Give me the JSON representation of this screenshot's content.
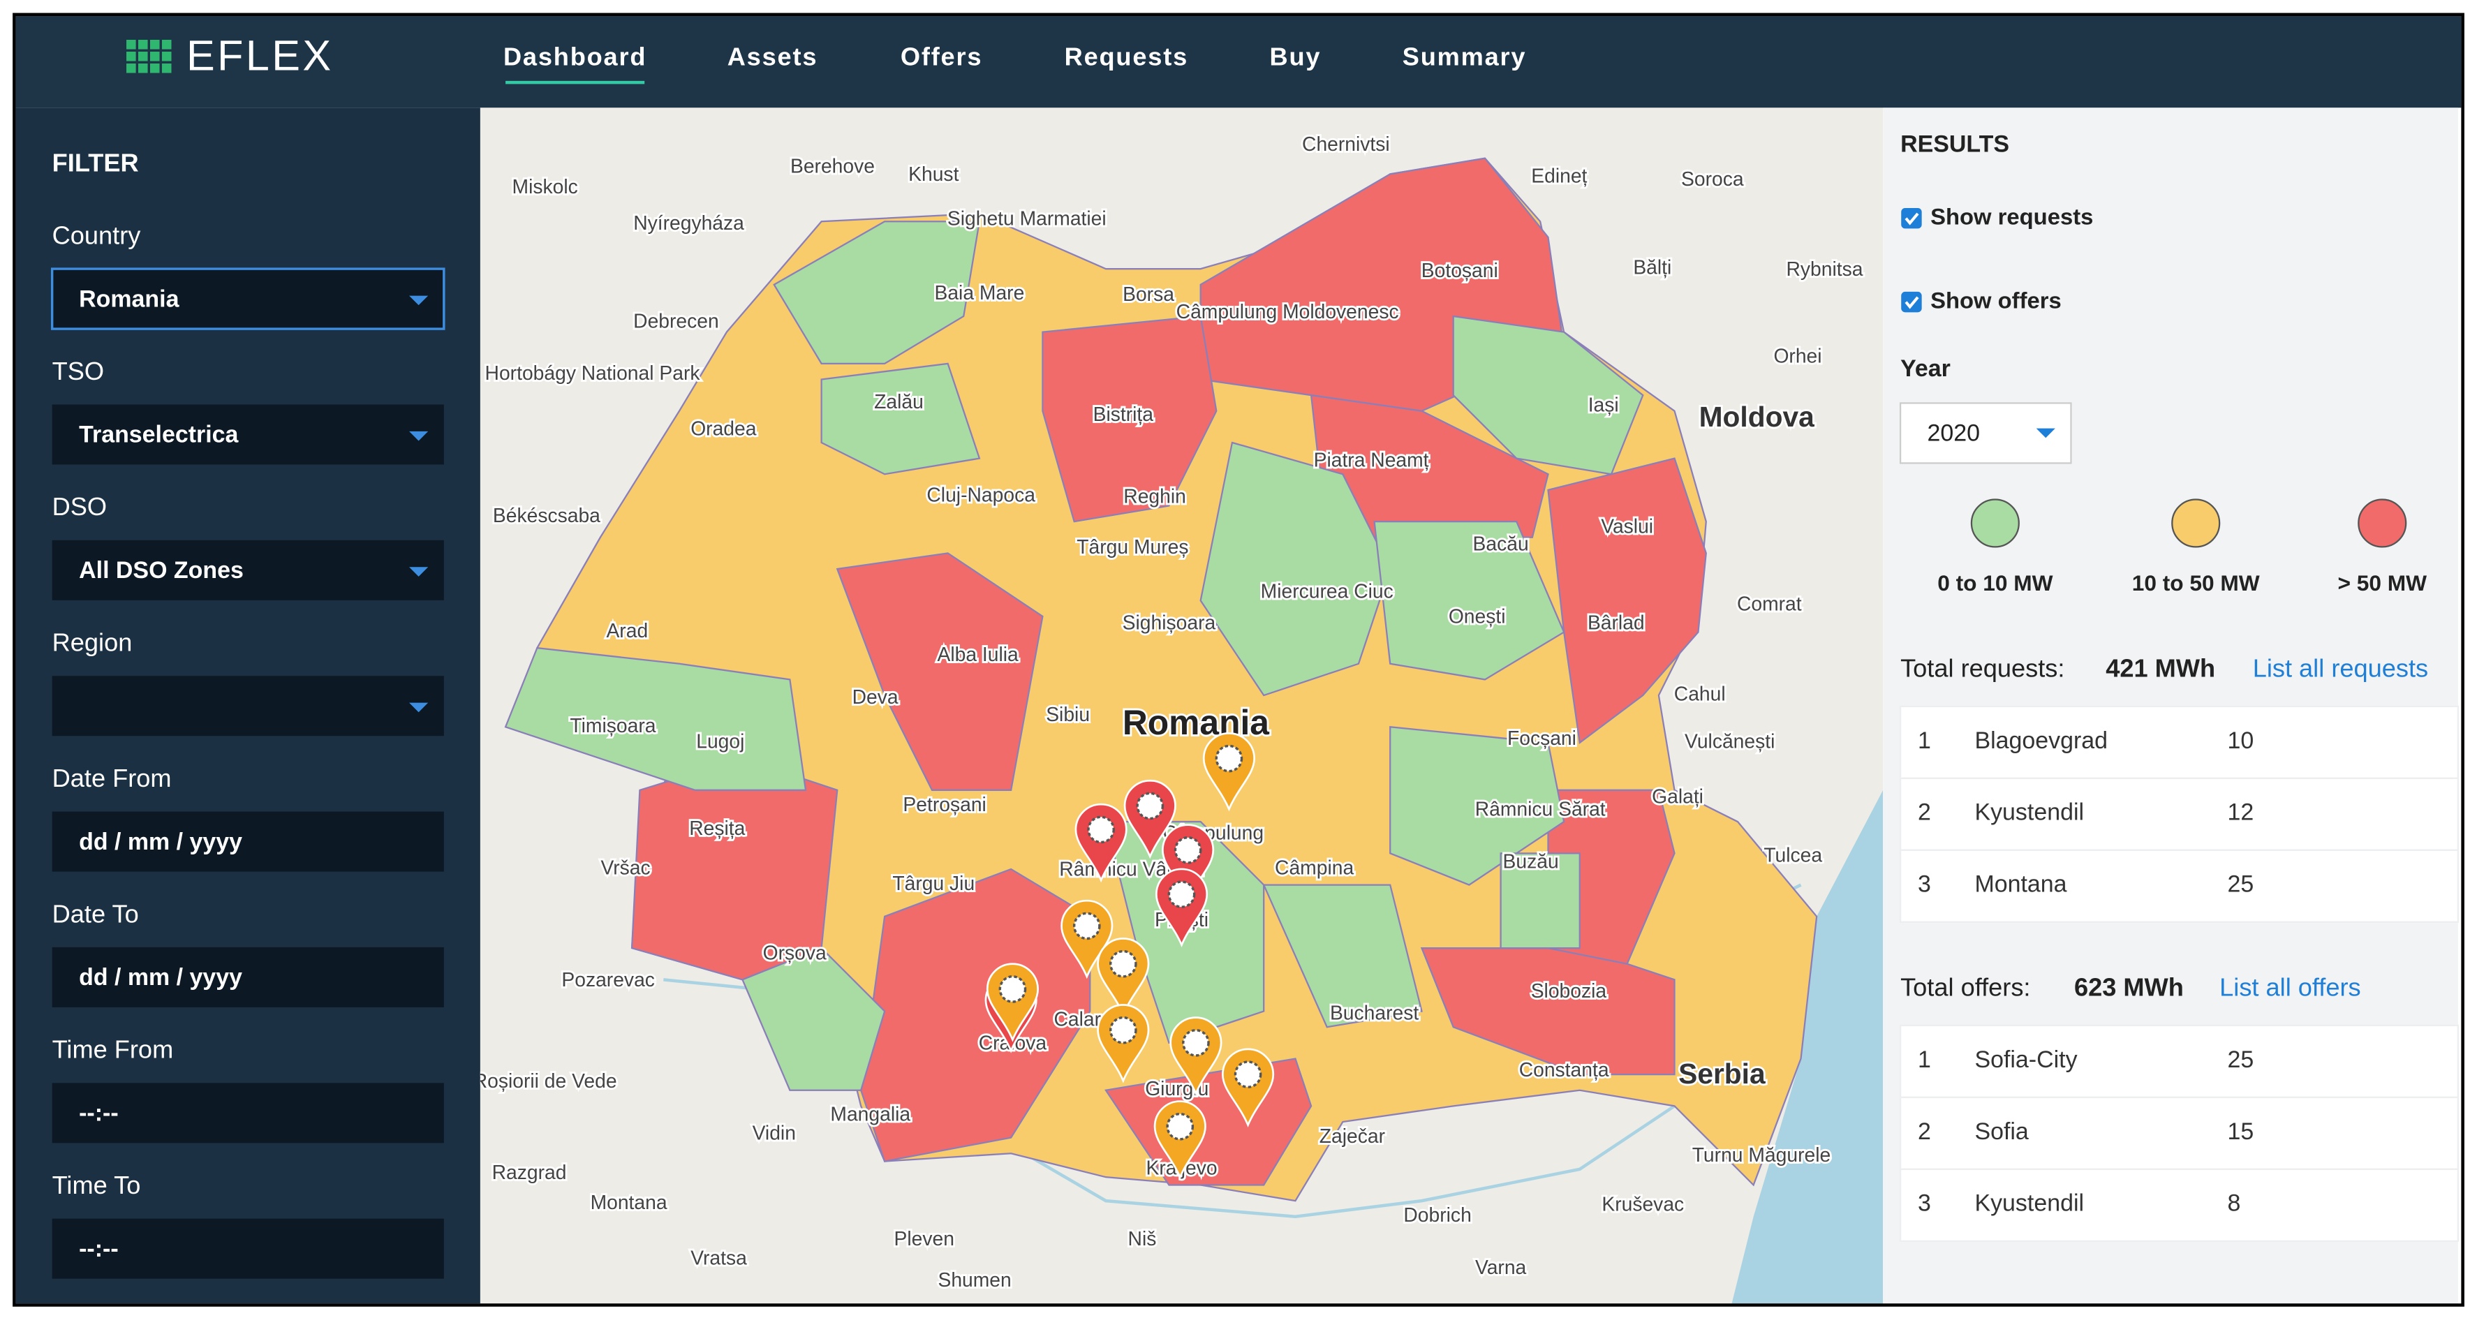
{
  "header": {
    "logo": "EFLEX",
    "nav": [
      "Dashboard",
      "Assets",
      "Offers",
      "Requests",
      "Buy",
      "Summary"
    ],
    "active": 0
  },
  "filter": {
    "title": "FILTER",
    "fields": [
      {
        "label": "Country",
        "value": "Romania",
        "dropdown": true
      },
      {
        "label": "TSO",
        "value": "Transelectrica",
        "dropdown": true
      },
      {
        "label": "DSO",
        "value": "All DSO Zones",
        "dropdown": true
      },
      {
        "label": "Region",
        "dropdown": true
      },
      {
        "label": "Date From",
        "value": "dd / mm / yyyy",
        "dropdown": false
      },
      {
        "label": "Date To",
        "value": "dd / mm / yyyy",
        "dropdown": false
      },
      {
        "label": "Time From",
        "value": "--:--",
        "dropdown": false
      },
      {
        "label": "Time To",
        "value": "--:--",
        "dropdown": false
      }
    ]
  },
  "map": {
    "labels": [
      "Chernivtsi",
      "Miskolc",
      "Berehove",
      "Khust",
      "Sighetu Marmatiei",
      "Nyíregyháza",
      "Debrecen",
      "Baia Mare",
      "Borsa",
      "Câmpulung Moldovenesc",
      "Botoșani",
      "Bălți",
      "Edineț",
      "Soroca",
      "Rybnitsa",
      "Orhei",
      "Moldova",
      "Hortobágy National Park",
      "Oradea",
      "Zalău",
      "Bistrița",
      "Iași",
      "Piatra Neamț",
      "Bacău",
      "Vaslui",
      "Cluj-Napoca",
      "Reghin",
      "Târgu Mureș",
      "Békéscsaba",
      "Arad",
      "Miercurea Ciuc",
      "Onești",
      "Bârlad",
      "Comrat",
      "Sighișoara",
      "Alba Iulia",
      "Timișoara",
      "Lugoj",
      "Deva",
      "Sibiu",
      "Romania",
      "Focșani",
      "Cahul",
      "Vulcănești",
      "Galați",
      "Reșița",
      "Petroșani",
      "Câmpulung",
      "Râmnicu Sărat",
      "Tulcea",
      "Vršac",
      "Târgu Jiu",
      "Râmnicu Vâlcea",
      "Câmpina",
      "Buzău",
      "Pitești",
      "Orșova",
      "Pozarevac",
      "Slobozia",
      "Bucharest",
      "Craiova",
      "Calarasi",
      "Constanța",
      "Serbia",
      "Roșiorii de Vede",
      "Giurgiu",
      "Zaječar",
      "Vidin",
      "Mangalia",
      "Turnu Măgurele",
      "Kraljevo",
      "Razgrad",
      "Dobrich",
      "Kruševac",
      "Montana",
      "Pleven",
      "Niš",
      "Vratsa",
      "Shumen",
      "Varna"
    ]
  },
  "results": {
    "title": "RESULTS",
    "checkboxes": [
      {
        "label": "Show requests",
        "checked": true
      },
      {
        "label": "Show offers",
        "checked": true
      }
    ],
    "year_label": "Year",
    "year": "2020",
    "legend": [
      {
        "label": "0 to 10 MW",
        "color": "#a9dca3"
      },
      {
        "label": "10 to 50 MW",
        "color": "#f8cc6b"
      },
      {
        "label": "> 50 MW",
        "color": "#f26b6b"
      }
    ],
    "requests": {
      "label": "Total requests:",
      "total": "421 MWh",
      "link": "List all requests",
      "rows": [
        {
          "rank": 1,
          "name": "Blagoevgrad",
          "value": 10
        },
        {
          "rank": 2,
          "name": "Kyustendil",
          "value": 12
        },
        {
          "rank": 3,
          "name": "Montana",
          "value": 25
        }
      ]
    },
    "offers": {
      "label": "Total offers:",
      "total": "623 MWh",
      "link": "List all offers",
      "rows": [
        {
          "rank": 1,
          "name": "Sofia-City",
          "value": 25
        },
        {
          "rank": 2,
          "name": "Sofia",
          "value": 15
        },
        {
          "rank": 3,
          "name": "Kyustendil",
          "value": 8
        }
      ]
    }
  }
}
